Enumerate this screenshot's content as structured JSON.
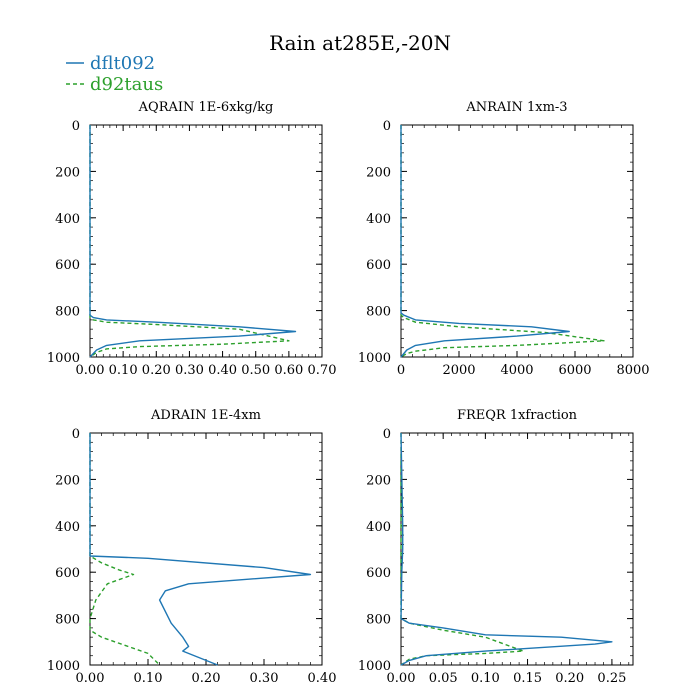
{
  "title": "Rain at285E,-20N",
  "legend": [
    {
      "name": "dflt092",
      "color": "#1f77b4",
      "dash": "solid"
    },
    {
      "name": "d92taus",
      "color": "#2ca02c",
      "dash": "dashed"
    }
  ],
  "colors": {
    "series1": "#1f77b4",
    "series2": "#2ca02c",
    "axis": "#000000"
  },
  "chart_data": [
    {
      "type": "line",
      "title": "AQRAIN  1E-6xkg/kg",
      "xlim": [
        0,
        0.7
      ],
      "ylim": [
        0,
        1000
      ],
      "y_inverted": true,
      "xticks": [
        0,
        0.1,
        0.2,
        0.3,
        0.4,
        0.5,
        0.6,
        0.7
      ],
      "xtick_labels": [
        "0.00",
        "0.10",
        "0.20",
        "0.30",
        "0.40",
        "0.50",
        "0.60",
        "0.70"
      ],
      "yticks": [
        0,
        200,
        400,
        600,
        800,
        1000
      ],
      "ytick_labels": [
        "0",
        "200",
        "400",
        "600",
        "800",
        "1000"
      ],
      "series": [
        {
          "name": "dflt092",
          "x": [
            0,
            0,
            0.01,
            0.05,
            0.2,
            0.45,
            0.62,
            0.45,
            0.15,
            0.05,
            0.02,
            0
          ],
          "y": [
            0,
            820,
            830,
            840,
            850,
            870,
            890,
            910,
            930,
            950,
            970,
            1000
          ]
        },
        {
          "name": "d92taus",
          "x": [
            0,
            0,
            0.01,
            0.05,
            0.2,
            0.45,
            0.6,
            0.4,
            0.15,
            0.05,
            0.02,
            0
          ],
          "y": [
            0,
            830,
            840,
            850,
            860,
            880,
            930,
            945,
            955,
            965,
            980,
            1000
          ]
        }
      ]
    },
    {
      "type": "line",
      "title": "ANRAIN  1xm-3",
      "xlim": [
        0,
        8000
      ],
      "ylim": [
        0,
        1000
      ],
      "y_inverted": true,
      "xticks": [
        0,
        2000,
        4000,
        6000,
        8000
      ],
      "xtick_labels": [
        "0",
        "2000",
        "4000",
        "6000",
        "8000"
      ],
      "yticks": [
        0,
        200,
        400,
        600,
        800,
        1000
      ],
      "ytick_labels": [
        "0",
        "200",
        "400",
        "600",
        "800",
        "1000"
      ],
      "series": [
        {
          "name": "dflt092",
          "x": [
            0,
            0,
            100,
            500,
            2000,
            4500,
            5800,
            4000,
            1500,
            500,
            200,
            0
          ],
          "y": [
            0,
            810,
            820,
            840,
            855,
            870,
            890,
            910,
            930,
            950,
            970,
            1000
          ]
        },
        {
          "name": "d92taus",
          "x": [
            0,
            0,
            100,
            500,
            2000,
            5000,
            7000,
            4000,
            1500,
            500,
            200,
            0
          ],
          "y": [
            0,
            820,
            830,
            850,
            870,
            895,
            930,
            950,
            960,
            975,
            985,
            1000
          ]
        }
      ]
    },
    {
      "type": "line",
      "title": "ADRAIN  1E-4xm",
      "xlim": [
        0,
        0.4
      ],
      "ylim": [
        0,
        1000
      ],
      "y_inverted": true,
      "xticks": [
        0,
        0.1,
        0.2,
        0.3,
        0.4
      ],
      "xtick_labels": [
        "0.00",
        "0.10",
        "0.20",
        "0.30",
        "0.40"
      ],
      "yticks": [
        0,
        200,
        400,
        600,
        800,
        1000
      ],
      "ytick_labels": [
        "0",
        "200",
        "400",
        "600",
        "800",
        "1000"
      ],
      "series": [
        {
          "name": "dflt092",
          "x": [
            0,
            0,
            0.1,
            0.3,
            0.38,
            0.17,
            0.13,
            0.12,
            0.14,
            0.16,
            0.17,
            0.16,
            0.22
          ],
          "y": [
            0,
            530,
            540,
            580,
            610,
            650,
            680,
            720,
            820,
            880,
            920,
            940,
            1000
          ]
        },
        {
          "name": "d92taus",
          "x": [
            0,
            0,
            0.02,
            0.05,
            0.075,
            0.03,
            0.01,
            0.0,
            0.0,
            0.02,
            0.1,
            0.12
          ],
          "y": [
            0,
            530,
            560,
            590,
            610,
            650,
            720,
            800,
            850,
            880,
            950,
            1000
          ]
        }
      ]
    },
    {
      "type": "line",
      "title": "FREQR  1xfraction",
      "xlim": [
        0,
        0.275
      ],
      "ylim": [
        0,
        1000
      ],
      "y_inverted": true,
      "xticks": [
        0,
        0.05,
        0.1,
        0.15,
        0.2,
        0.25
      ],
      "xtick_labels": [
        "0.00",
        "0.05",
        "0.10",
        "0.15",
        "0.20",
        "0.25"
      ],
      "yticks": [
        0,
        200,
        400,
        600,
        800,
        1000
      ],
      "ytick_labels": [
        "0",
        "200",
        "400",
        "600",
        "800",
        "1000"
      ],
      "series": [
        {
          "name": "dflt092",
          "x": [
            0,
            0.002,
            0.002,
            0.001,
            0,
            0.01,
            0.05,
            0.1,
            0.19,
            0.25,
            0.23,
            0.1,
            0.03,
            0.01,
            0
          ],
          "y": [
            0,
            400,
            500,
            600,
            800,
            820,
            840,
            870,
            880,
            900,
            910,
            940,
            960,
            980,
            1000
          ]
        },
        {
          "name": "d92taus",
          "x": [
            0,
            0,
            0.01,
            0.05,
            0.1,
            0.145,
            0.1,
            0.03,
            0.01,
            0
          ],
          "y": [
            0,
            800,
            820,
            850,
            880,
            940,
            950,
            960,
            975,
            1000
          ]
        }
      ]
    }
  ]
}
